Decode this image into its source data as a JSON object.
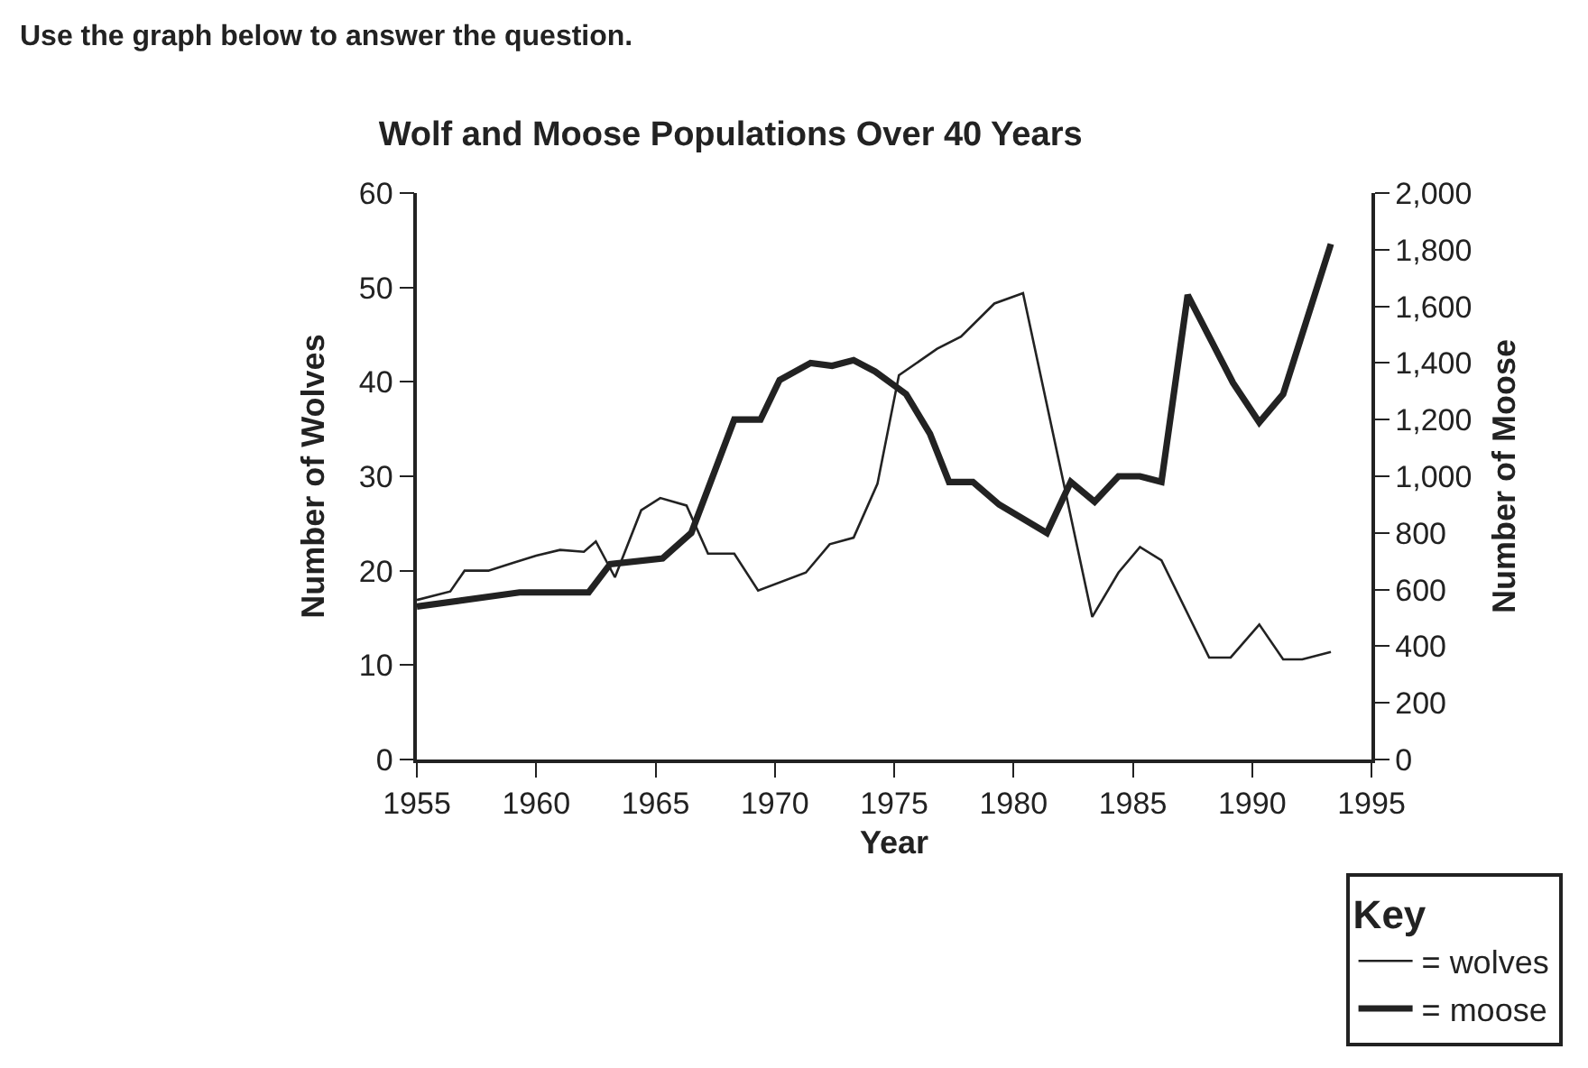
{
  "chart_data": {
    "type": "line",
    "title": "Wolf and Moose Populations Over 40 Years",
    "xlabel": "Year",
    "ylabel": "Number of Wolves",
    "y2label": "Number of Moose",
    "legend_title": "Key",
    "annotations": [
      "Use the graph below to answer the question."
    ],
    "xlim": [
      1955,
      1995
    ],
    "xticks": [
      1955,
      1960,
      1965,
      1970,
      1975,
      1980,
      1985,
      1990,
      1995
    ],
    "ylim": [
      0,
      60
    ],
    "yticks": [
      0,
      10,
      20,
      30,
      40,
      50,
      60
    ],
    "y2lim": [
      0,
      2000
    ],
    "y2ticks": [
      0,
      200,
      400,
      600,
      800,
      {
        "value": 1000,
        "label": "1,000"
      },
      {
        "value": 1200,
        "label": "1,200"
      },
      {
        "value": 1400,
        "label": "1,400"
      },
      {
        "value": 1600,
        "label": "1,600"
      },
      {
        "value": 1800,
        "label": "1,800"
      },
      {
        "value": 2000,
        "label": "2,000"
      }
    ],
    "legend": "bottom right",
    "marker": "none",
    "line_style": "solid",
    "series": [
      {
        "name": "= wolves",
        "color": "#222222",
        "x": [
          1955,
          1956.4,
          1957,
          1958,
          1959,
          1960,
          1961,
          1962,
          1962.5,
          1963.3,
          1964.4,
          1965.2,
          1966.3,
          1967.2,
          1968.3,
          1969.3,
          1971.3,
          1972.3,
          1973.3,
          1974.3,
          1975.2,
          1976.8,
          1977.8,
          1979.2,
          1980.4,
          1983.3,
          1984.4,
          1985.3,
          1986.2,
          1988.2,
          1989.1,
          1990.3,
          1991.3,
          1992.1,
          1993.3
        ],
        "values": [
          16.9,
          17.8,
          20,
          20,
          20.8,
          21.6,
          22.2,
          22,
          23.1,
          19.3,
          26.4,
          27.7,
          26.9,
          21.8,
          21.8,
          17.9,
          19.8,
          22.8,
          23.5,
          29.2,
          40.7,
          43.5,
          44.8,
          48.3,
          49.4,
          15.1,
          19.8,
          22.5,
          21.1,
          10.8,
          10.8,
          14.3,
          10.6,
          10.6,
          11.4
        ]
      },
      {
        "name": "= moose",
        "color": "#222222",
        "axis": "y2",
        "x": [
          1955,
          1959.3,
          1962.2,
          1963.1,
          1965.3,
          1966.5,
          1968.3,
          1969.4,
          1970.2,
          1971.5,
          1972.4,
          1973.3,
          1974.2,
          1975.5,
          1976.5,
          1977.3,
          1978.3,
          1979.4,
          1981.4,
          1982.4,
          1983.4,
          1984.4,
          1985.3,
          1986.2,
          1987.3,
          1989.2,
          1990.3,
          1991.3,
          1993.3
        ],
        "values": [
          540,
          590,
          590,
          690,
          710,
          800,
          1200,
          1200,
          1340,
          1400,
          1390,
          1410,
          1370,
          1290,
          1150,
          980,
          980,
          900,
          800,
          980,
          910,
          1000,
          1000,
          980,
          1640,
          1330,
          1190,
          1290,
          1820
        ]
      }
    ]
  }
}
